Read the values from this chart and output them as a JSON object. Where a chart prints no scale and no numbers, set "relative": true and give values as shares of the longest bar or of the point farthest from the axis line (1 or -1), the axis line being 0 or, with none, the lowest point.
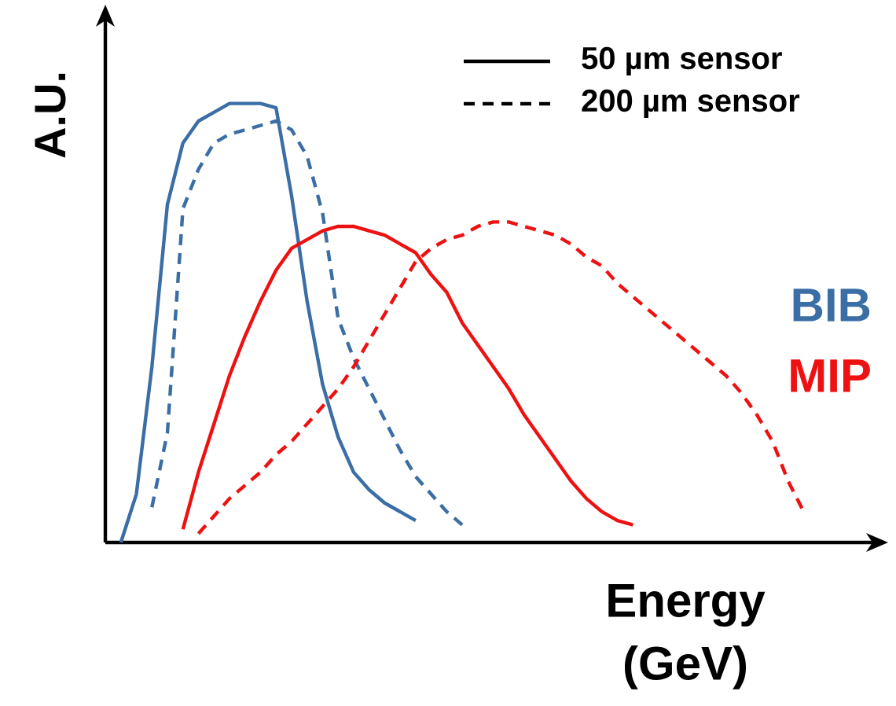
{
  "chart_data": {
    "type": "line",
    "relative": true,
    "xlabel": "Energy (GeV)",
    "ylabel": "A.U.",
    "tick_labels": false,
    "annotations": [
      "50 µm sensor",
      "200 µm sensor"
    ],
    "categories": [
      null,
      null,
      null,
      null,
      null,
      null,
      null,
      null,
      null,
      null,
      null,
      null,
      null,
      null,
      null,
      null,
      null,
      null,
      null,
      null,
      null,
      null,
      null,
      null,
      null,
      null,
      null,
      null,
      null,
      null,
      null,
      null,
      null,
      null,
      null,
      null,
      null,
      null,
      null,
      null,
      null,
      null,
      null,
      null,
      null,
      null
    ],
    "series": [
      {
        "name": "BIB",
        "color": "#3a6ea5",
        "line_style": "solid",
        "values": [
          null,
          0,
          0.11,
          0.4,
          0.77,
          0.91,
          0.96,
          0.98,
          1,
          1,
          1,
          0.99,
          0.79,
          0.55,
          0.36,
          0.24,
          0.16,
          0.12,
          0.09,
          0.07,
          0.05,
          null,
          null,
          null,
          null,
          null,
          null,
          null,
          null,
          null,
          null,
          null,
          null,
          null,
          null,
          null,
          null,
          null,
          null,
          null,
          null,
          null,
          null,
          null,
          null,
          null
        ]
      },
      {
        "color": "#3a6ea5",
        "line_style": "dashed",
        "values": [
          null,
          null,
          null,
          0.08,
          0.25,
          0.76,
          0.85,
          0.91,
          0.93,
          0.94,
          0.95,
          0.96,
          0.94,
          0.88,
          0.75,
          0.51,
          0.42,
          0.35,
          0.28,
          0.21,
          0.15,
          0.11,
          0.07,
          0.04,
          null,
          null,
          null,
          null,
          null,
          null,
          null,
          null,
          null,
          null,
          null,
          null,
          null,
          null,
          null,
          null,
          null,
          null,
          null,
          null,
          null,
          null
        ]
      },
      {
        "name": "MIP",
        "color": "#ee1111",
        "line_style": "solid",
        "values": [
          null,
          null,
          null,
          null,
          null,
          0.03,
          0.16,
          0.27,
          0.38,
          0.47,
          0.55,
          0.62,
          0.67,
          0.69,
          0.71,
          0.72,
          0.72,
          0.71,
          0.7,
          0.68,
          0.66,
          0.61,
          0.57,
          0.5,
          0.45,
          0.4,
          0.35,
          0.29,
          0.24,
          0.19,
          0.14,
          0.1,
          0.07,
          0.05,
          0.04,
          null,
          null,
          null,
          null,
          null,
          null,
          null,
          null,
          null,
          null,
          null
        ]
      },
      {
        "color": "#ee1111",
        "line_style": "dashed",
        "values": [
          null,
          null,
          null,
          null,
          null,
          null,
          0.02,
          0.06,
          0.1,
          0.13,
          0.16,
          0.2,
          0.23,
          0.27,
          0.31,
          0.35,
          0.4,
          0.46,
          0.52,
          0.58,
          0.64,
          0.67,
          0.69,
          0.7,
          0.72,
          0.73,
          0.73,
          0.72,
          0.71,
          0.7,
          0.68,
          0.65,
          0.63,
          0.59,
          0.56,
          0.53,
          0.5,
          0.47,
          0.44,
          0.41,
          0.38,
          0.34,
          0.29,
          0.23,
          0.14,
          0.07
        ]
      }
    ]
  }
}
